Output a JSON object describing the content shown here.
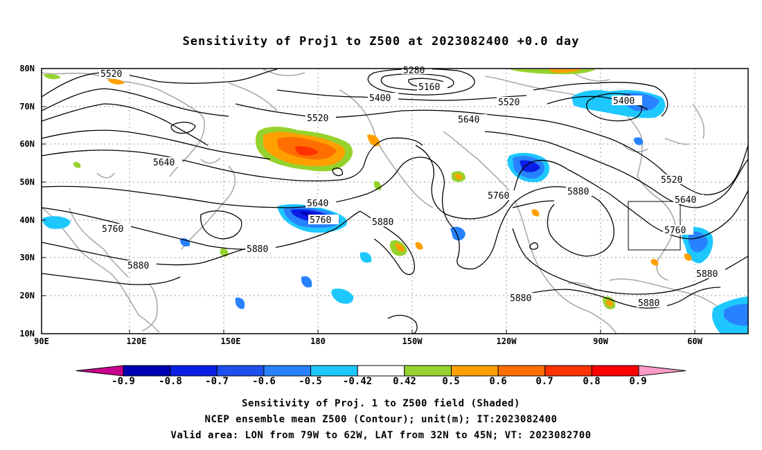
{
  "title": "Sensitivity of Proj1 to Z500 at 2023082400 +0.0 day",
  "map": {
    "lat_labels": [
      "80N",
      "70N",
      "60N",
      "50N",
      "40N",
      "30N",
      "20N",
      "10N"
    ],
    "lon_labels": [
      "90E",
      "120E",
      "150E",
      "180",
      "150W",
      "120W",
      "90W",
      "60W"
    ],
    "contour_labels": [
      "5520",
      "5280",
      "5160",
      "5400",
      "5520",
      "5640",
      "5520",
      "5400",
      "5640",
      "5760",
      "5880",
      "5640",
      "5760",
      "5880",
      "5760",
      "5880",
      "5880",
      "5520",
      "5640",
      "5760",
      "5880",
      "5880",
      "5880"
    ],
    "valid_area_box": {
      "lon_min": -79,
      "lon_max": -62,
      "lat_min": 32,
      "lat_max": 45
    },
    "colors": {
      "contour": "#000000",
      "coast": "#aaaaaa",
      "grid": "#999999"
    }
  },
  "colorbar": {
    "labels": [
      "-0.9",
      "-0.8",
      "-0.7",
      "-0.6",
      "-0.5",
      "-0.42",
      "0.42",
      "0.5",
      "0.6",
      "0.7",
      "0.8",
      "0.9"
    ],
    "colors": [
      "#c8008c",
      "#0000b4",
      "#0a1ee6",
      "#1e50f0",
      "#2882ff",
      "#1ec8ff",
      "#ffffff",
      "#96d22d",
      "#ffa000",
      "#ff6e00",
      "#ff3200",
      "#ff0000",
      "#ff9bc8"
    ]
  },
  "caption": {
    "line1": "Sensitivity of Proj. 1 to Z500 field (Shaded)",
    "line2": "NCEP ensemble mean Z500 (Contour); unit(m); IT:2023082400",
    "line3": "Valid area: LON from 79W to 62W, LAT from 32N to 45N; VT: 2023082700"
  }
}
